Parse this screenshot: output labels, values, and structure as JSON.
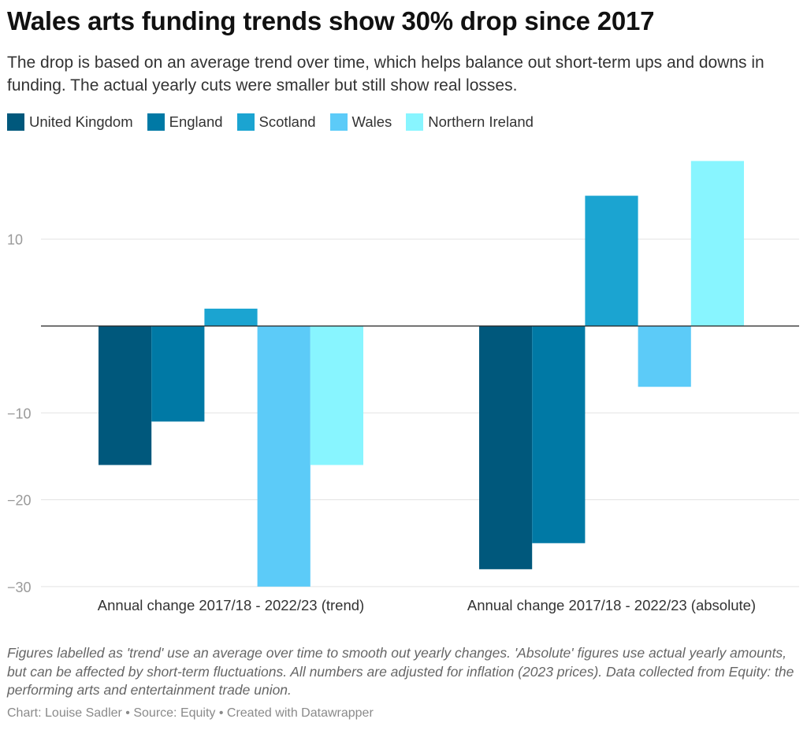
{
  "title": "Wales arts funding trends show 30% drop since 2017",
  "subtitle": "The drop is based on an average trend over time, which helps balance out short-term ups and downs in funding. The actual yearly cuts were smaller but still show real losses.",
  "notes": "Figures labelled as 'trend' use an average over time to smooth out yearly changes. 'Absolute' figures use actual yearly amounts, but can be affected by short-term fluctuations. All numbers are adjusted for inflation (2023 prices). Data collected from Equity: the performing arts and entertainment trade union.",
  "credit": "Chart: Louise Sadler • Source: Equity • Created with Datawrapper",
  "chart_data": {
    "type": "bar",
    "categories": [
      "Annual change 2017/18 - 2022/23 (trend)",
      "Annual change 2017/18 - 2022/23 (absolute)"
    ],
    "series": [
      {
        "name": "United Kingdom",
        "color": "#00587c",
        "values": [
          -16,
          -28
        ]
      },
      {
        "name": "England",
        "color": "#0079a5",
        "values": [
          -11,
          -25
        ]
      },
      {
        "name": "Scotland",
        "color": "#1ba4d1",
        "values": [
          2,
          15
        ]
      },
      {
        "name": "Wales",
        "color": "#5ccbf8",
        "values": [
          -30,
          -7
        ]
      },
      {
        "name": "Northern Ireland",
        "color": "#88f5ff",
        "values": [
          -16,
          19
        ]
      }
    ],
    "yticks": [
      10,
      0,
      -10,
      -20,
      -30
    ],
    "ytick_labels": [
      "10",
      "",
      "−10",
      "−20",
      "−30"
    ],
    "ylim": [
      -30,
      19
    ],
    "grid": true,
    "legend": "top-left"
  }
}
